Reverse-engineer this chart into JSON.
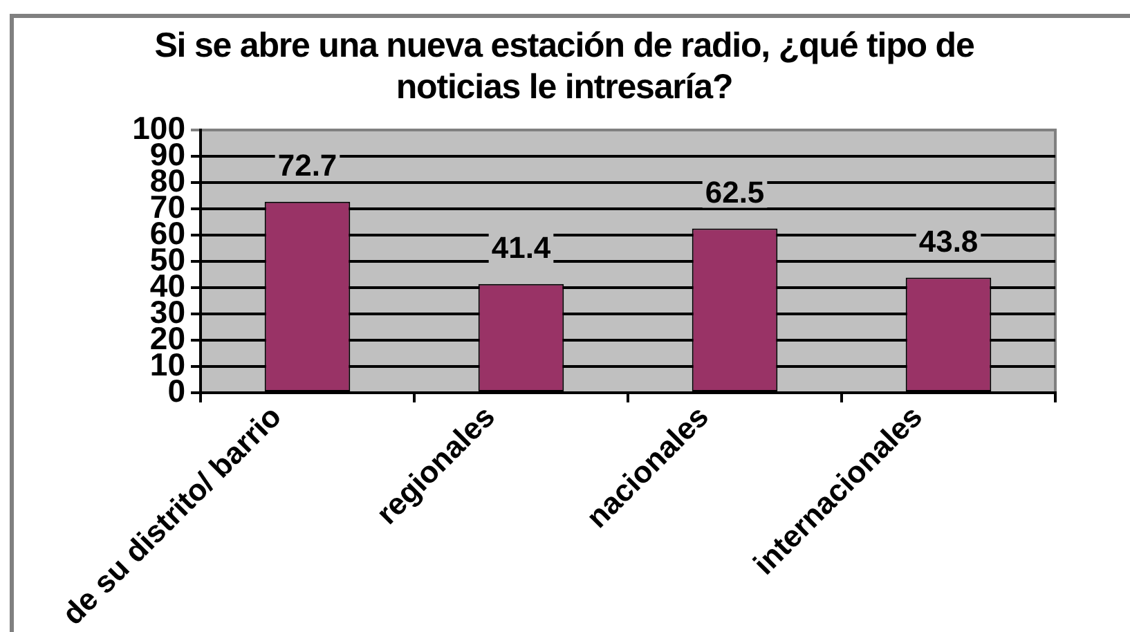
{
  "chart_data": {
    "type": "bar",
    "title": "Si se abre una nueva estación de radio, ¿qué tipo de noticias le intresaría?",
    "categories": [
      "de su distrito/ barrio",
      "regionales",
      "nacionales",
      "internacionales"
    ],
    "values": [
      72.7,
      41.4,
      62.5,
      43.8
    ],
    "color": "#993366",
    "ylim": [
      0,
      100
    ],
    "yticks": [
      0,
      10,
      20,
      30,
      40,
      50,
      60,
      70,
      80,
      90,
      100
    ],
    "grid": "y",
    "data_labels": true
  }
}
